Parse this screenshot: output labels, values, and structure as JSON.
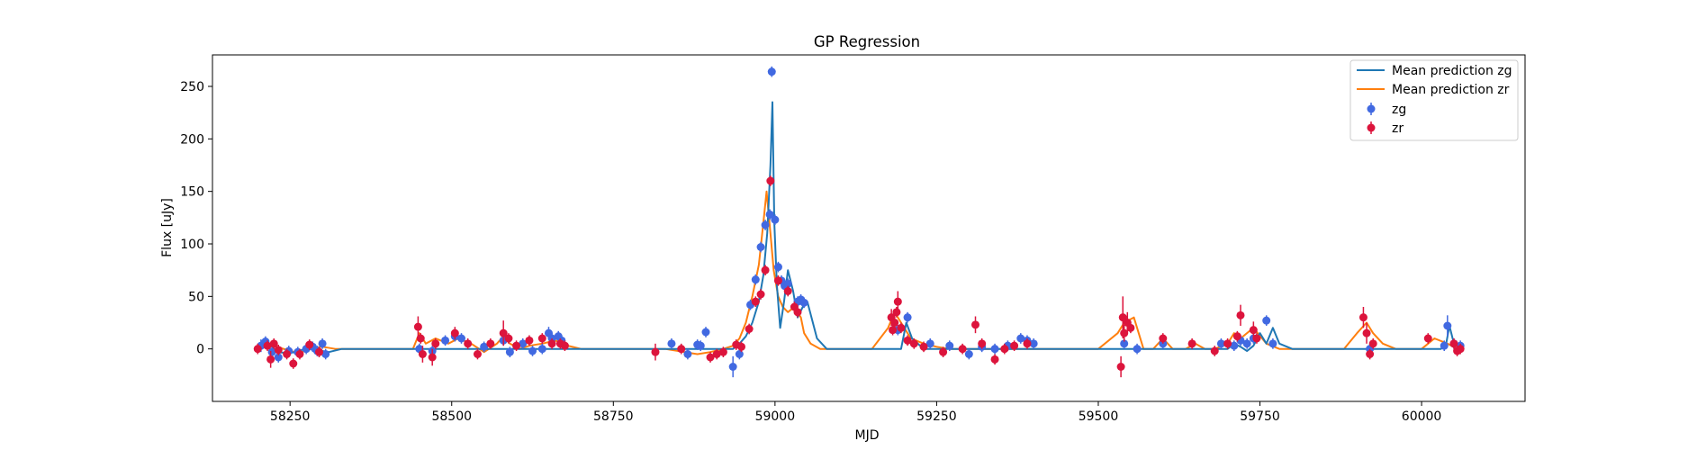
{
  "chart_data": {
    "type": "scatter",
    "title": "GP Regression",
    "xlabel": "MJD",
    "ylabel": "Flux [uJy]",
    "xlim": [
      58130,
      60160
    ],
    "ylim": [
      -50,
      280
    ],
    "xticks": [
      58250,
      58500,
      58750,
      59000,
      59250,
      59500,
      59750,
      60000
    ],
    "yticks": [
      0,
      50,
      100,
      150,
      200,
      250
    ],
    "grid": false,
    "legend_position": "top-right",
    "legend": [
      "Mean prediction zg",
      "Mean prediction zr",
      "zg",
      "zr"
    ],
    "colors": {
      "line_zg": "#1f77b4",
      "line_zr": "#ff7f0e",
      "points_zg": "#4169e1",
      "points_zr": "#dc143c"
    },
    "series": [
      {
        "name": "Mean prediction zg",
        "kind": "line",
        "x": [
          58200,
          58215,
          58222,
          58230,
          58245,
          58260,
          58272,
          58285,
          58300,
          58310,
          58330,
          58400,
          58445,
          58452,
          58465,
          58480,
          58500,
          58520,
          58540,
          58560,
          58580,
          58600,
          58620,
          58640,
          58660,
          58680,
          58700,
          58800,
          58840,
          58860,
          58870,
          58885,
          58895,
          58905,
          58920,
          58935,
          58945,
          58955,
          58965,
          58975,
          58982,
          58988,
          58993,
          58996,
          58999,
          59003,
          59008,
          59014,
          59020,
          59028,
          59035,
          59043,
          59050,
          59065,
          59080,
          59150,
          59180,
          59195,
          59203,
          59212,
          59230,
          59250,
          59270,
          59290,
          59310,
          59330,
          59350,
          59370,
          59390,
          59400,
          59410,
          59500,
          59530,
          59560,
          59600,
          59650,
          59680,
          59700,
          59710,
          59720,
          59730,
          59740,
          59750,
          59760,
          59770,
          59780,
          59800,
          59900,
          59950,
          60000,
          60030,
          60038,
          60043,
          60050,
          60060
        ],
        "y": [
          1,
          5,
          2,
          -3,
          -4,
          -3,
          0,
          1,
          -2,
          -3,
          0,
          0,
          0,
          0,
          0,
          0,
          0,
          0,
          0,
          0,
          0,
          0,
          0,
          0,
          0,
          0,
          0,
          0,
          0,
          0,
          0,
          0,
          0,
          0,
          0,
          0,
          5,
          12,
          25,
          45,
          70,
          110,
          175,
          235,
          120,
          60,
          20,
          45,
          75,
          55,
          30,
          40,
          45,
          10,
          0,
          0,
          0,
          0,
          25,
          10,
          0,
          0,
          0,
          0,
          0,
          0,
          0,
          0,
          0,
          0,
          0,
          0,
          0,
          0,
          0,
          0,
          0,
          0,
          5,
          2,
          -2,
          3,
          15,
          5,
          20,
          5,
          0,
          0,
          0,
          0,
          0,
          5,
          22,
          5,
          0
        ]
      },
      {
        "name": "Mean prediction zr",
        "kind": "line",
        "x": [
          58200,
          58215,
          58230,
          58250,
          58265,
          58280,
          58300,
          58320,
          58400,
          58440,
          58450,
          58460,
          58475,
          58495,
          58510,
          58530,
          58550,
          58570,
          58580,
          58590,
          58605,
          58620,
          58640,
          58660,
          58680,
          58700,
          58800,
          58830,
          58860,
          58880,
          58900,
          58920,
          58935,
          58945,
          58955,
          58965,
          58975,
          58982,
          58987,
          58993,
          58998,
          59005,
          59012,
          59020,
          59030,
          59040,
          59045,
          59055,
          59070,
          59150,
          59175,
          59185,
          59195,
          59210,
          59230,
          59250,
          59270,
          59290,
          59310,
          59330,
          59350,
          59370,
          59390,
          59410,
          59500,
          59530,
          59540,
          59555,
          59570,
          59585,
          59600,
          59615,
          59635,
          59650,
          59665,
          59680,
          59700,
          59710,
          59720,
          59740,
          59760,
          59780,
          59800,
          59880,
          59900,
          59915,
          59925,
          59940,
          59960,
          59980,
          60000,
          60010,
          60020,
          60040,
          60055,
          60065
        ],
        "y": [
          0,
          5,
          2,
          -2,
          -4,
          0,
          2,
          0,
          0,
          0,
          15,
          5,
          10,
          5,
          10,
          5,
          -3,
          5,
          12,
          5,
          0,
          3,
          5,
          8,
          3,
          0,
          0,
          0,
          -3,
          -5,
          -3,
          0,
          3,
          10,
          25,
          50,
          80,
          120,
          150,
          110,
          75,
          50,
          40,
          35,
          40,
          30,
          15,
          5,
          0,
          0,
          20,
          35,
          25,
          10,
          5,
          2,
          0,
          0,
          0,
          0,
          0,
          0,
          0,
          0,
          0,
          15,
          25,
          30,
          0,
          0,
          10,
          0,
          0,
          5,
          0,
          0,
          5,
          15,
          10,
          20,
          5,
          0,
          0,
          0,
          15,
          25,
          15,
          5,
          0,
          0,
          0,
          5,
          10,
          5,
          0,
          0
        ]
      },
      {
        "name": "zg",
        "kind": "errorbar",
        "x": [
          58205,
          58212,
          58222,
          58232,
          58248,
          58262,
          58275,
          58285,
          58292,
          58300,
          58305,
          58450,
          58470,
          58490,
          58505,
          58515,
          58550,
          58580,
          58590,
          58610,
          58625,
          58640,
          58650,
          58655,
          58665,
          58670,
          58840,
          58865,
          58880,
          58885,
          58893,
          58935,
          58945,
          58962,
          58970,
          58978,
          58985,
          58992,
          58995,
          59000,
          59005,
          59010,
          59015,
          59020,
          59035,
          59040,
          59045,
          59190,
          59205,
          59240,
          59270,
          59300,
          59320,
          59340,
          59360,
          59380,
          59390,
          59400,
          59540,
          59560,
          59600,
          59690,
          59710,
          59720,
          59730,
          59740,
          59760,
          59770,
          59920,
          60035,
          60040,
          60050,
          60060
        ],
        "y": [
          3,
          7,
          -3,
          -8,
          -2,
          -3,
          0,
          2,
          -2,
          5,
          -5,
          0,
          -2,
          8,
          12,
          10,
          2,
          8,
          -3,
          5,
          -2,
          0,
          15,
          10,
          12,
          8,
          5,
          -5,
          4,
          3,
          16,
          -17,
          -5,
          42,
          66,
          97,
          118,
          128,
          264,
          123,
          78,
          65,
          60,
          62,
          45,
          47,
          44,
          18,
          30,
          5,
          3,
          -5,
          2,
          0,
          3,
          10,
          8,
          5,
          5,
          0,
          5,
          5,
          3,
          8,
          5,
          10,
          27,
          5,
          0,
          3,
          22,
          5,
          3
        ],
        "err": [
          6,
          5,
          5,
          5,
          5,
          5,
          5,
          5,
          5,
          5,
          5,
          5,
          5,
          5,
          5,
          5,
          5,
          5,
          5,
          5,
          5,
          5,
          6,
          5,
          5,
          5,
          5,
          5,
          5,
          5,
          5,
          10,
          5,
          5,
          5,
          5,
          5,
          5,
          5,
          5,
          5,
          5,
          5,
          5,
          5,
          5,
          5,
          5,
          5,
          5,
          5,
          5,
          5,
          5,
          5,
          5,
          5,
          5,
          5,
          5,
          5,
          5,
          5,
          5,
          5,
          5,
          5,
          5,
          5,
          5,
          10,
          5,
          5
        ]
      },
      {
        "name": "zr",
        "kind": "errorbar",
        "x": [
          58200,
          58215,
          58220,
          58225,
          58232,
          58245,
          58255,
          58265,
          58280,
          58295,
          58448,
          58452,
          58455,
          58470,
          58475,
          58505,
          58525,
          58540,
          58560,
          58580,
          58588,
          58600,
          58620,
          58640,
          58655,
          58668,
          58675,
          58815,
          58855,
          58900,
          58910,
          58920,
          58940,
          58948,
          58960,
          58970,
          58978,
          58985,
          58993,
          59005,
          59020,
          59030,
          59035,
          59180,
          59182,
          59185,
          59188,
          59190,
          59195,
          59205,
          59215,
          59230,
          59260,
          59290,
          59310,
          59320,
          59340,
          59355,
          59370,
          59390,
          59535,
          59538,
          59540,
          59545,
          59550,
          59600,
          59645,
          59680,
          59700,
          59715,
          59720,
          59740,
          59745,
          59910,
          59915,
          59920,
          59925,
          60010,
          60050,
          60055,
          60060
        ],
        "y": [
          0,
          3,
          -10,
          5,
          -1,
          -5,
          -14,
          -5,
          4,
          -3,
          21,
          10,
          -5,
          -8,
          5,
          15,
          5,
          -5,
          5,
          15,
          10,
          3,
          8,
          10,
          5,
          5,
          3,
          -3,
          0,
          -8,
          -5,
          -3,
          4,
          2,
          19,
          45,
          52,
          75,
          160,
          65,
          55,
          40,
          35,
          30,
          18,
          25,
          35,
          45,
          20,
          8,
          5,
          2,
          -3,
          0,
          23,
          5,
          -10,
          0,
          3,
          5,
          -17,
          30,
          15,
          25,
          20,
          10,
          5,
          -2,
          5,
          12,
          32,
          18,
          10,
          30,
          15,
          -5,
          5,
          10,
          5,
          -2,
          0
        ],
        "err": [
          5,
          5,
          8,
          5,
          5,
          5,
          5,
          5,
          5,
          5,
          10,
          5,
          8,
          8,
          5,
          6,
          5,
          5,
          5,
          12,
          5,
          5,
          5,
          5,
          5,
          5,
          5,
          8,
          5,
          5,
          5,
          5,
          5,
          5,
          5,
          5,
          5,
          5,
          5,
          5,
          5,
          5,
          5,
          8,
          5,
          8,
          5,
          10,
          5,
          5,
          5,
          5,
          5,
          5,
          8,
          5,
          5,
          5,
          5,
          5,
          10,
          20,
          8,
          10,
          5,
          5,
          5,
          5,
          5,
          5,
          10,
          8,
          5,
          10,
          10,
          5,
          5,
          5,
          5,
          5,
          5
        ]
      }
    ]
  }
}
